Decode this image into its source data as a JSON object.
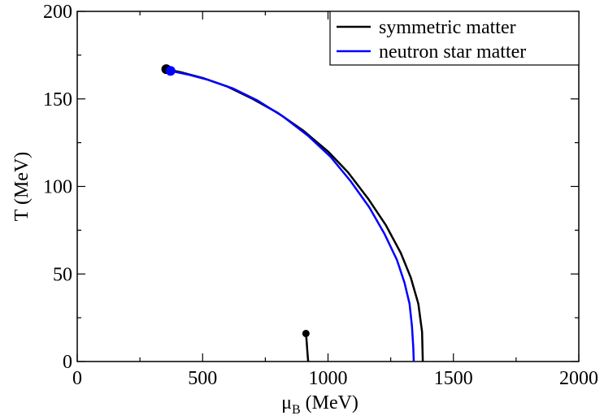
{
  "chart_data": {
    "type": "line",
    "xlabel_symbol": "μ",
    "xlabel_sub": "B",
    "xlabel_unit": " (MeV)",
    "ylabel": "T (MeV)",
    "xlim": [
      0,
      2000
    ],
    "ylim": [
      0,
      200
    ],
    "xticks": [
      0,
      500,
      1000,
      1500,
      2000
    ],
    "yticks": [
      0,
      50,
      100,
      150,
      200
    ],
    "x_tick_labels": [
      "0",
      "500",
      "1000",
      "1500",
      "2000"
    ],
    "y_tick_labels": [
      "0",
      "50",
      "100",
      "150",
      "200"
    ],
    "grid": false,
    "legend_position": "top-right",
    "series": [
      {
        "name": "symmetric matter",
        "color": "#000000",
        "x": [
          355,
          420,
          500,
          600,
          700,
          800,
          900,
          1000,
          1080,
          1160,
          1230,
          1290,
          1330,
          1360,
          1375,
          1378
        ],
        "y": [
          167,
          165,
          162,
          157,
          150,
          142,
          132,
          120,
          108,
          93,
          78,
          62,
          48,
          33,
          17,
          0
        ],
        "endpoints": [
          {
            "x": 355,
            "y": 167
          }
        ]
      },
      {
        "name": "neutron star matter",
        "color": "#0000ff",
        "x": [
          372,
          440,
          520,
          620,
          720,
          820,
          920,
          1010,
          1090,
          1165,
          1225,
          1275,
          1305,
          1325,
          1335,
          1340,
          1342
        ],
        "y": [
          166,
          164,
          161,
          156,
          149,
          140,
          129,
          117,
          103,
          88,
          73,
          58,
          45,
          33,
          20,
          8,
          0
        ],
        "endpoints": [
          {
            "x": 372,
            "y": 166
          }
        ]
      }
    ],
    "unlabeled_segments": [
      {
        "color": "#000000",
        "x": [
          912,
          915,
          918,
          921
        ],
        "y": [
          16,
          11,
          5,
          0
        ],
        "endpoints": [
          {
            "x": 912,
            "y": 16
          }
        ]
      }
    ]
  }
}
